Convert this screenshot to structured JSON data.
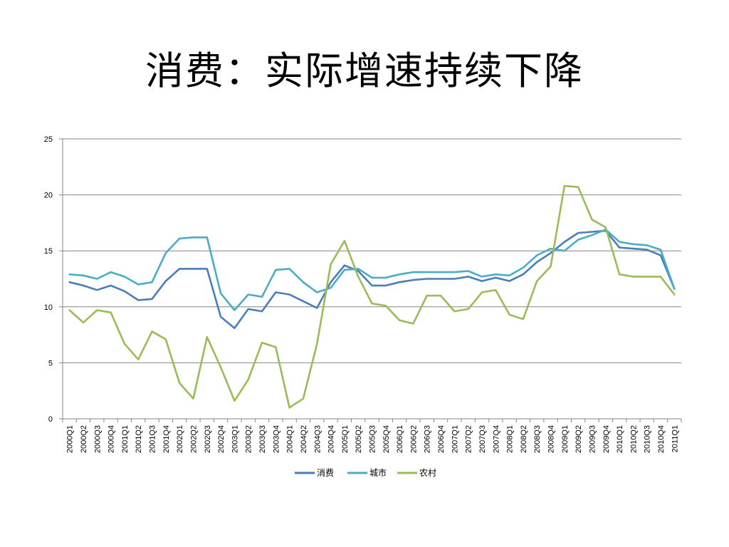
{
  "title": "消费：实际增速持续下降",
  "chart_data": {
    "type": "line",
    "ylim": [
      0,
      25
    ],
    "yticks": [
      0,
      5,
      10,
      15,
      20,
      25
    ],
    "grid": true,
    "legend_position": "bottom",
    "categories": [
      "2000Q1",
      "2000Q2",
      "2000Q3",
      "2000Q4",
      "2001Q1",
      "2001Q2",
      "2001Q3",
      "2001Q4",
      "2002Q1",
      "2002Q2",
      "2002Q3",
      "2002Q4",
      "2003Q1",
      "2003Q2",
      "2003Q3",
      "2003Q4",
      "2004Q1",
      "2004Q2",
      "2004Q3",
      "2004Q4",
      "2005Q1",
      "2005Q2",
      "2005Q3",
      "2005Q4",
      "2006Q1",
      "2006Q2",
      "2006Q3",
      "2006Q4",
      "2007Q1",
      "2007Q2",
      "2007Q3",
      "2007Q4",
      "2008Q1",
      "2008Q2",
      "2008Q3",
      "2008Q4",
      "2009Q1",
      "2009Q2",
      "2009Q3",
      "2009Q4",
      "2010Q1",
      "2010Q2",
      "2010Q3",
      "2010Q4",
      "2011Q1"
    ],
    "series": [
      {
        "name": "消费",
        "color": "#4a7ebb",
        "values": [
          12.2,
          11.9,
          11.5,
          11.9,
          11.4,
          10.6,
          10.7,
          12.3,
          13.4,
          13.4,
          13.4,
          9.1,
          8.1,
          9.8,
          9.6,
          11.3,
          11.1,
          10.5,
          9.9,
          12.2,
          13.7,
          13.2,
          11.9,
          11.9,
          12.2,
          12.4,
          12.5,
          12.5,
          12.5,
          12.7,
          12.3,
          12.6,
          12.3,
          12.9,
          14.0,
          14.8,
          15.8,
          16.6,
          16.7,
          16.8,
          15.3,
          15.2,
          15.1,
          14.6,
          11.6
        ]
      },
      {
        "name": "城市",
        "color": "#4bacc6",
        "values": [
          12.9,
          12.8,
          12.5,
          13.1,
          12.7,
          12.0,
          12.2,
          14.8,
          16.1,
          16.2,
          16.2,
          11.2,
          9.7,
          11.1,
          10.9,
          13.3,
          13.4,
          12.2,
          11.3,
          11.7,
          13.3,
          13.4,
          12.6,
          12.6,
          12.9,
          13.1,
          13.1,
          13.1,
          13.1,
          13.2,
          12.7,
          12.9,
          12.8,
          13.5,
          14.6,
          15.2,
          15.0,
          16.0,
          16.4,
          16.9,
          15.8,
          15.6,
          15.5,
          15.1,
          11.6
        ]
      },
      {
        "name": "农村",
        "color": "#9bbb59",
        "values": [
          9.7,
          8.6,
          9.7,
          9.5,
          6.7,
          5.3,
          7.8,
          7.1,
          3.2,
          1.8,
          7.3,
          4.6,
          1.6,
          3.5,
          6.8,
          6.4,
          1.0,
          1.8,
          6.7,
          13.8,
          15.9,
          12.7,
          10.3,
          10.1,
          8.8,
          8.5,
          11.0,
          11.0,
          9.6,
          9.8,
          11.3,
          11.5,
          9.3,
          8.9,
          12.3,
          13.6,
          20.8,
          20.7,
          17.8,
          17.1,
          12.9,
          12.7,
          12.7,
          12.7,
          11.1
        ]
      }
    ]
  }
}
